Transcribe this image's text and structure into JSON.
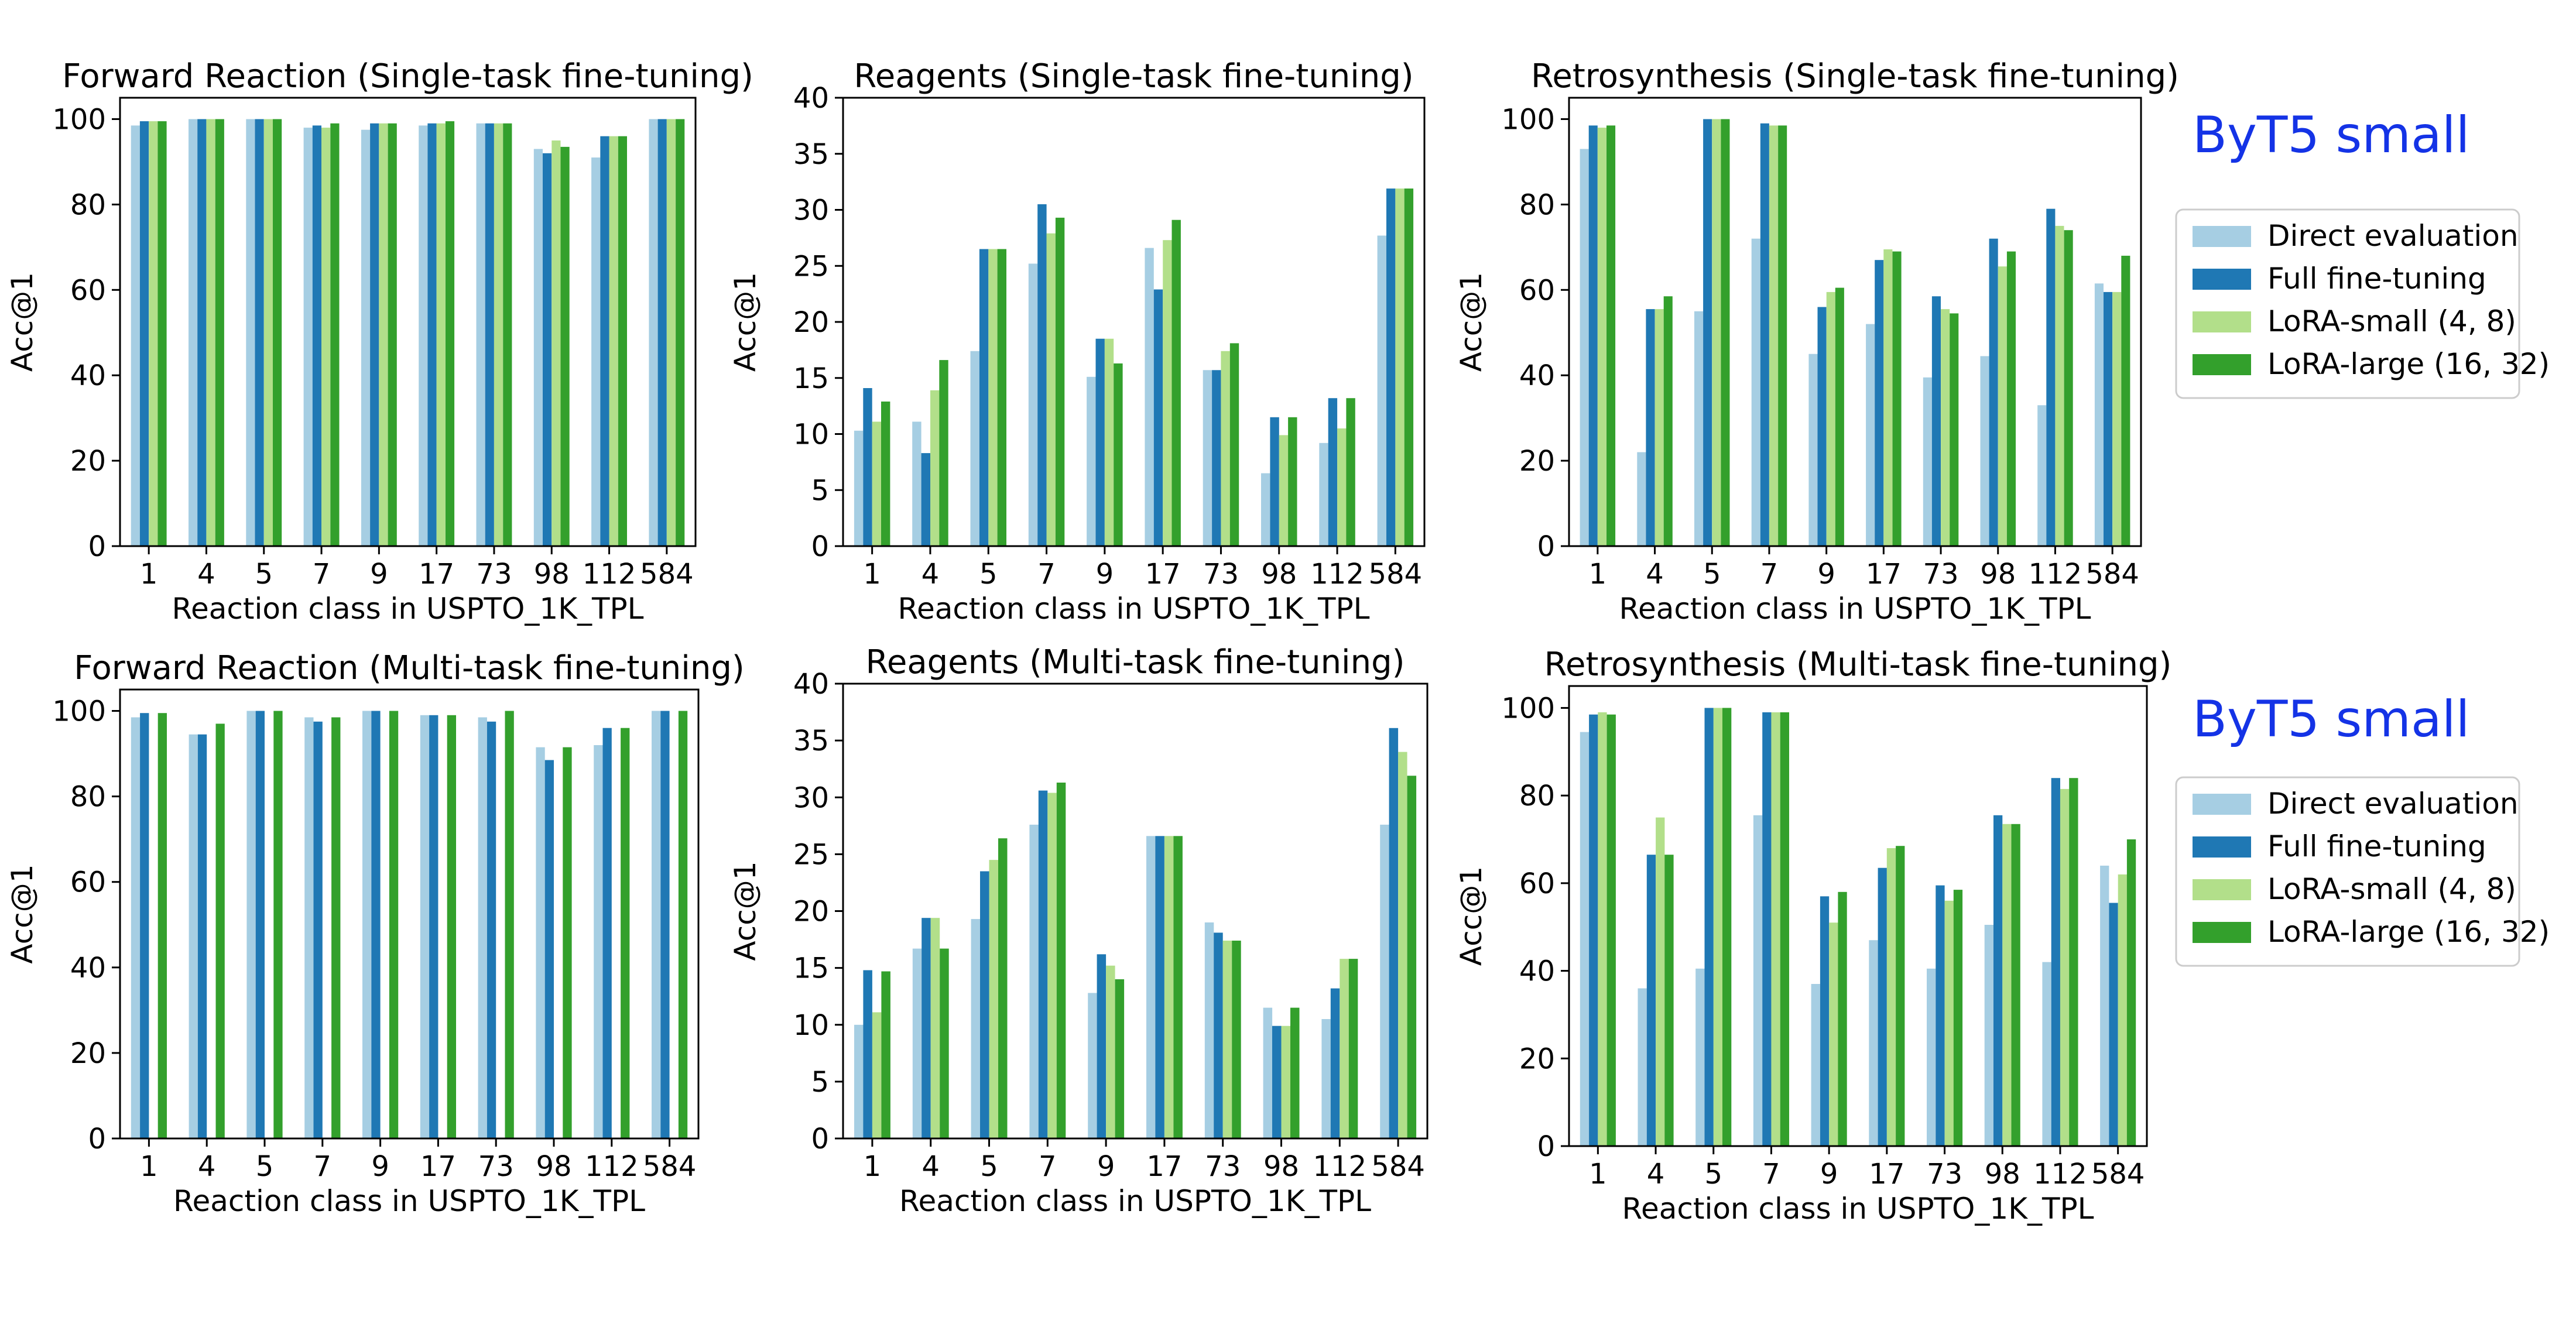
{
  "colors": {
    "Direct evaluation": "#a6cee3",
    "Full fine-tuning": "#1f78b4",
    "LoRA-small (4, 8)": "#b2df8a",
    "LoRA-large (16, 32)": "#33a02c",
    "model_label": "#1433e6"
  },
  "model_labels": [
    "ByT5 small",
    "ByT5 small"
  ],
  "legend": [
    "Direct evaluation",
    "Full fine-tuning",
    "LoRA-small (4, 8)",
    "LoRA-large (16, 32)"
  ],
  "chart_data": [
    {
      "type": "bar",
      "title": "Forward Reaction (Single-task fine-tuning)",
      "xlabel": "Reaction class in USPTO_1K_TPL",
      "ylabel": "Acc@1",
      "categories": [
        "1",
        "4",
        "5",
        "7",
        "9",
        "17",
        "73",
        "98",
        "112",
        "584"
      ],
      "ylim": [
        0,
        105
      ],
      "yticks": [
        0,
        20,
        40,
        60,
        80,
        100
      ],
      "series": [
        {
          "name": "Direct evaluation",
          "values": [
            98.5,
            100,
            100,
            98,
            97.5,
            98.5,
            99,
            93,
            91,
            100
          ]
        },
        {
          "name": "Full fine-tuning",
          "values": [
            99.5,
            100,
            100,
            98.5,
            99,
            99,
            99,
            92,
            96,
            100
          ]
        },
        {
          "name": "LoRA-small (4, 8)",
          "values": [
            99.5,
            100,
            100,
            98,
            99,
            99,
            99,
            95,
            96,
            100
          ]
        },
        {
          "name": "LoRA-large (16, 32)",
          "values": [
            99.5,
            100,
            100,
            99,
            99,
            99.5,
            99,
            93.5,
            96,
            100
          ]
        }
      ]
    },
    {
      "type": "bar",
      "title": "Reagents (Single-task fine-tuning)",
      "xlabel": "Reaction class in USPTO_1K_TPL",
      "ylabel": "Acc@1",
      "categories": [
        "1",
        "4",
        "5",
        "7",
        "9",
        "17",
        "73",
        "98",
        "112",
        "584"
      ],
      "ylim": [
        0,
        40
      ],
      "yticks": [
        0,
        5,
        10,
        15,
        20,
        25,
        30,
        35,
        40
      ],
      "series": [
        {
          "name": "Direct evaluation",
          "values": [
            10.3,
            11.1,
            17.4,
            25.2,
            15.1,
            26.6,
            15.7,
            6.5,
            9.2,
            27.7
          ]
        },
        {
          "name": "Full fine-tuning",
          "values": [
            14.1,
            8.3,
            26.5,
            30.5,
            18.5,
            22.9,
            15.7,
            11.5,
            13.2,
            31.9
          ]
        },
        {
          "name": "LoRA-small (4, 8)",
          "values": [
            11.1,
            13.9,
            26.5,
            27.9,
            18.5,
            27.3,
            17.4,
            9.9,
            10.5,
            31.9
          ]
        },
        {
          "name": "LoRA-large (16, 32)",
          "values": [
            12.9,
            16.6,
            26.5,
            29.3,
            16.3,
            29.1,
            18.1,
            11.5,
            13.2,
            31.9
          ]
        }
      ]
    },
    {
      "type": "bar",
      "title": "Retrosynthesis (Single-task fine-tuning)",
      "xlabel": "Reaction class in USPTO_1K_TPL",
      "ylabel": "Acc@1",
      "categories": [
        "1",
        "4",
        "5",
        "7",
        "9",
        "17",
        "73",
        "98",
        "112",
        "584"
      ],
      "ylim": [
        0,
        105
      ],
      "yticks": [
        0,
        20,
        40,
        60,
        80,
        100
      ],
      "series": [
        {
          "name": "Direct evaluation",
          "values": [
            93,
            22,
            55,
            72,
            45,
            52,
            39.5,
            44.5,
            33,
            61.5
          ]
        },
        {
          "name": "Full fine-tuning",
          "values": [
            98.5,
            55.5,
            100,
            99,
            56,
            67,
            58.5,
            72,
            79,
            59.5
          ]
        },
        {
          "name": "LoRA-small (4, 8)",
          "values": [
            98,
            55.5,
            100,
            98.5,
            59.5,
            69.5,
            55.5,
            65.5,
            75,
            59.5
          ]
        },
        {
          "name": "LoRA-large (16, 32)",
          "values": [
            98.5,
            58.5,
            100,
            98.5,
            60.5,
            69,
            54.5,
            69,
            74,
            68
          ]
        }
      ]
    },
    {
      "type": "bar",
      "title": "Forward Reaction (Multi-task fine-tuning)",
      "xlabel": "Reaction class in USPTO_1K_TPL",
      "ylabel": "Acc@1",
      "categories": [
        "1",
        "4",
        "5",
        "7",
        "9",
        "17",
        "73",
        "98",
        "112",
        "584"
      ],
      "ylim": [
        0,
        105
      ],
      "yticks": [
        0,
        20,
        40,
        60,
        80,
        100
      ],
      "series": [
        {
          "name": "Direct evaluation",
          "values": [
            98.5,
            94.5,
            100,
            98.5,
            100,
            99,
            98.5,
            91.5,
            92,
            100
          ]
        },
        {
          "name": "Full fine-tuning",
          "values": [
            99.5,
            94.5,
            100,
            97.5,
            100,
            99,
            97.5,
            88.5,
            96,
            100
          ]
        },
        {
          "name": "LoRA-small (4, 8)",
          "values": [
            0,
            0,
            0,
            0,
            0,
            0,
            0,
            0,
            0,
            0
          ]
        },
        {
          "name": "LoRA-large (16, 32)",
          "values": [
            99.5,
            97,
            100,
            98.5,
            100,
            99,
            100,
            91.5,
            96,
            100
          ]
        }
      ]
    },
    {
      "type": "bar",
      "title": "Reagents (Multi-task fine-tuning)",
      "xlabel": "Reaction class in USPTO_1K_TPL",
      "ylabel": "Acc@1",
      "categories": [
        "1",
        "4",
        "5",
        "7",
        "9",
        "17",
        "73",
        "98",
        "112",
        "584"
      ],
      "ylim": [
        0,
        40
      ],
      "yticks": [
        0,
        5,
        10,
        15,
        20,
        25,
        30,
        35,
        40
      ],
      "series": [
        {
          "name": "Direct evaluation",
          "values": [
            10.0,
            16.7,
            19.3,
            27.6,
            12.8,
            26.6,
            19.0,
            11.5,
            10.5,
            27.6
          ]
        },
        {
          "name": "Full fine-tuning",
          "values": [
            14.8,
            19.4,
            23.5,
            30.6,
            16.2,
            26.6,
            18.1,
            9.9,
            13.2,
            36.1
          ]
        },
        {
          "name": "LoRA-small (4, 8)",
          "values": [
            11.1,
            19.4,
            24.5,
            30.4,
            15.2,
            26.6,
            17.4,
            9.9,
            15.8,
            34.0
          ]
        },
        {
          "name": "LoRA-large (16, 32)",
          "values": [
            14.7,
            16.7,
            26.4,
            31.3,
            14.0,
            26.6,
            17.4,
            11.5,
            15.8,
            31.9
          ]
        }
      ]
    },
    {
      "type": "bar",
      "title": "Retrosynthesis (Multi-task fine-tuning)",
      "xlabel": "Reaction class in USPTO_1K_TPL",
      "ylabel": "Acc@1",
      "categories": [
        "1",
        "4",
        "5",
        "7",
        "9",
        "17",
        "73",
        "98",
        "112",
        "584"
      ],
      "ylim": [
        0,
        105
      ],
      "yticks": [
        0,
        20,
        40,
        60,
        80,
        100
      ],
      "series": [
        {
          "name": "Direct evaluation",
          "values": [
            94.5,
            36,
            40.5,
            75.5,
            37,
            47,
            40.5,
            50.5,
            42,
            64
          ]
        },
        {
          "name": "Full fine-tuning",
          "values": [
            98.5,
            66.5,
            100,
            99,
            57,
            63.5,
            59.5,
            75.5,
            84,
            55.5
          ]
        },
        {
          "name": "LoRA-small (4, 8)",
          "values": [
            99,
            75,
            100,
            99,
            51,
            68,
            56,
            73.5,
            81.5,
            62
          ]
        },
        {
          "name": "LoRA-large (16, 32)",
          "values": [
            98.5,
            66.5,
            100,
            99,
            58,
            68.5,
            58.5,
            73.5,
            84,
            70
          ]
        }
      ]
    }
  ]
}
